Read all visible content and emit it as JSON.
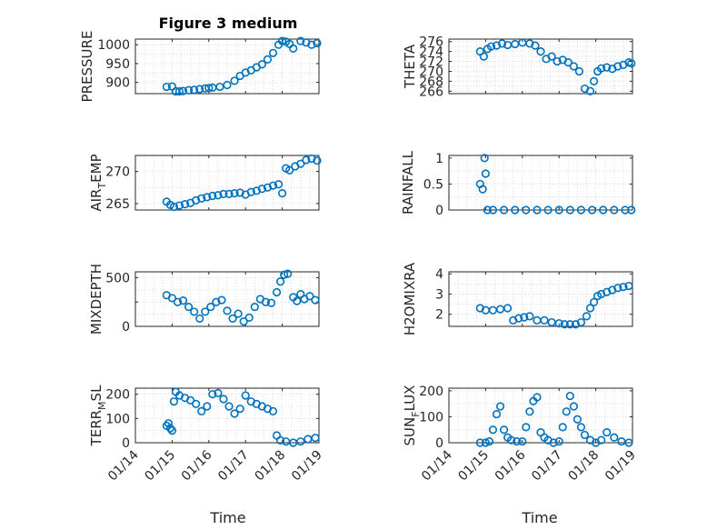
{
  "figure_title": "Figure 3 medium",
  "chart_data": [
    {
      "id": "pressure",
      "type": "scatter",
      "ylabel": "PRESSURE",
      "ylabel_sub": "",
      "xlim": [
        0,
        5
      ],
      "ylim": [
        870,
        1015
      ],
      "yticks": [
        900,
        950,
        1000
      ],
      "ytick_labels": [
        "900",
        "950",
        "1000"
      ],
      "grid": "on",
      "x": [
        0.85,
        1.0,
        1.1,
        1.2,
        1.3,
        1.45,
        1.6,
        1.75,
        1.9,
        2.0,
        2.1,
        2.3,
        2.5,
        2.7,
        2.85,
        3.0,
        3.15,
        3.3,
        3.45,
        3.6,
        3.75,
        3.9,
        4.0,
        4.1,
        4.2,
        4.3,
        4.5,
        4.65,
        4.8,
        4.95
      ],
      "values": [
        888,
        889,
        876,
        876,
        877,
        879,
        880,
        882,
        884,
        885,
        886,
        888,
        893,
        904,
        917,
        926,
        932,
        940,
        948,
        961,
        978,
        1000,
        1010,
        1008,
        1002,
        990,
        1010,
        1006,
        1000,
        1004
      ]
    },
    {
      "id": "theta",
      "type": "scatter",
      "ylabel": "THETA",
      "ylabel_sub": "",
      "xlim": [
        0,
        5
      ],
      "ylim": [
        265.5,
        276.5
      ],
      "yticks": [
        266,
        268,
        270,
        272,
        274,
        276
      ],
      "ytick_labels": [
        "266",
        "268",
        "270",
        "272",
        "274",
        "276"
      ],
      "grid": "on",
      "x": [
        0.85,
        0.95,
        1.05,
        1.15,
        1.3,
        1.45,
        1.6,
        1.8,
        2.0,
        2.2,
        2.35,
        2.5,
        2.65,
        2.8,
        2.95,
        3.1,
        3.25,
        3.4,
        3.55,
        3.7,
        3.85,
        3.95,
        4.05,
        4.15,
        4.3,
        4.45,
        4.6,
        4.75,
        4.9,
        4.97
      ],
      "values": [
        274,
        273,
        274.5,
        275,
        275.2,
        275.6,
        275.3,
        275.5,
        275.8,
        275.6,
        275.2,
        274,
        272.5,
        273,
        272,
        272.3,
        271.8,
        271,
        270,
        266.5,
        266,
        268,
        270,
        270.6,
        270.8,
        270.5,
        271,
        271.3,
        271.8,
        271.6
      ]
    },
    {
      "id": "airtemp",
      "type": "scatter",
      "ylabel": "AIR",
      "ylabel_sub": "T",
      "ylabel_suffix": "EMP",
      "xlim": [
        0,
        5
      ],
      "ylim": [
        264,
        272.5
      ],
      "yticks": [
        265,
        270
      ],
      "ytick_labels": [
        "265",
        "270"
      ],
      "grid": "on",
      "x": [
        0.85,
        0.95,
        1.05,
        1.2,
        1.35,
        1.5,
        1.65,
        1.8,
        1.95,
        2.1,
        2.25,
        2.4,
        2.55,
        2.7,
        2.85,
        3.0,
        3.15,
        3.3,
        3.45,
        3.6,
        3.75,
        3.9,
        4.0,
        4.1,
        4.2,
        4.35,
        4.5,
        4.65,
        4.8,
        4.95
      ],
      "values": [
        265.3,
        264.8,
        264.5,
        264.7,
        264.9,
        265.1,
        265.5,
        265.8,
        266.0,
        266.2,
        266.3,
        266.5,
        266.5,
        266.6,
        266.7,
        266.4,
        266.8,
        267.0,
        267.3,
        267.5,
        267.8,
        268.0,
        266.6,
        270.5,
        270.2,
        270.8,
        271.2,
        271.8,
        272.0,
        271.7
      ]
    },
    {
      "id": "rainfall",
      "type": "scatter",
      "ylabel": "RAINFALL",
      "ylabel_sub": "",
      "xlim": [
        0,
        5
      ],
      "ylim": [
        0,
        1.05
      ],
      "yticks": [
        0,
        0.5,
        1
      ],
      "ytick_labels": [
        "0",
        "0.5",
        "1"
      ],
      "grid": "on",
      "x": [
        0.85,
        0.92,
        0.97,
        1.0,
        1.05,
        1.2,
        1.5,
        1.8,
        2.1,
        2.4,
        2.7,
        3.0,
        3.3,
        3.6,
        3.9,
        4.2,
        4.5,
        4.8,
        4.97
      ],
      "values": [
        0.5,
        0.4,
        1.0,
        0.7,
        0,
        0,
        0,
        0,
        0,
        0,
        0,
        0,
        0,
        0,
        0,
        0,
        0,
        0,
        0
      ]
    },
    {
      "id": "mixdepth",
      "type": "scatter",
      "ylabel": "MIXDEPTH",
      "ylabel_sub": "",
      "xlim": [
        0,
        5
      ],
      "ylim": [
        0,
        560
      ],
      "yticks": [
        0,
        250,
        500
      ],
      "ytick_labels": [
        "0",
        "",
        "500"
      ],
      "grid": "on",
      "x": [
        0.85,
        1.0,
        1.15,
        1.3,
        1.45,
        1.6,
        1.75,
        1.9,
        2.05,
        2.2,
        2.35,
        2.5,
        2.65,
        2.8,
        2.95,
        3.1,
        3.25,
        3.4,
        3.55,
        3.7,
        3.85,
        3.95,
        4.05,
        4.15,
        4.3,
        4.4,
        4.5,
        4.6,
        4.75,
        4.9
      ],
      "values": [
        320,
        290,
        250,
        265,
        200,
        150,
        80,
        150,
        200,
        250,
        270,
        160,
        80,
        130,
        50,
        90,
        200,
        280,
        250,
        240,
        350,
        460,
        530,
        540,
        300,
        260,
        330,
        280,
        310,
        270
      ]
    },
    {
      "id": "h2omixra",
      "type": "scatter",
      "ylabel": "H2OMIXRA",
      "ylabel_sub": "",
      "xlim": [
        0,
        5
      ],
      "ylim": [
        1.4,
        4.1
      ],
      "yticks": [
        2,
        3,
        4
      ],
      "ytick_labels": [
        "2",
        "3",
        "4"
      ],
      "grid": "on",
      "x": [
        0.85,
        1.0,
        1.2,
        1.4,
        1.6,
        1.75,
        1.9,
        2.05,
        2.2,
        2.4,
        2.6,
        2.8,
        3.0,
        3.15,
        3.3,
        3.45,
        3.6,
        3.75,
        3.85,
        3.95,
        4.05,
        4.15,
        4.3,
        4.45,
        4.6,
        4.75,
        4.9
      ],
      "values": [
        2.3,
        2.2,
        2.2,
        2.25,
        2.3,
        1.7,
        1.8,
        1.85,
        1.9,
        1.7,
        1.7,
        1.6,
        1.55,
        1.5,
        1.5,
        1.5,
        1.6,
        1.9,
        2.3,
        2.6,
        2.9,
        3.0,
        3.1,
        3.2,
        3.3,
        3.35,
        3.4
      ]
    },
    {
      "id": "terrmsl",
      "type": "scatter",
      "ylabel": "TERR",
      "ylabel_sub": "M",
      "ylabel_suffix": "SL",
      "xlim": [
        0,
        5
      ],
      "ylim": [
        0,
        225
      ],
      "yticks": [
        0,
        100,
        200
      ],
      "ytick_labels": [
        "0",
        "100",
        "200"
      ],
      "grid": "on",
      "x": [
        0.85,
        0.9,
        0.95,
        1.0,
        1.05,
        1.1,
        1.2,
        1.35,
        1.5,
        1.65,
        1.8,
        1.95,
        2.1,
        2.25,
        2.4,
        2.55,
        2.7,
        2.85,
        3.0,
        3.15,
        3.3,
        3.45,
        3.6,
        3.75,
        3.85,
        3.95,
        4.1,
        4.3,
        4.5,
        4.7,
        4.9
      ],
      "values": [
        70,
        80,
        60,
        50,
        170,
        210,
        195,
        185,
        175,
        160,
        130,
        150,
        200,
        205,
        180,
        150,
        120,
        140,
        195,
        170,
        160,
        150,
        140,
        130,
        30,
        10,
        5,
        0,
        5,
        15,
        20
      ]
    },
    {
      "id": "sunflux",
      "type": "scatter",
      "ylabel": "SUN",
      "ylabel_sub": "F",
      "ylabel_suffix": "LUX",
      "xlim": [
        0,
        5
      ],
      "ylim": [
        0,
        210
      ],
      "yticks": [
        0,
        100,
        200
      ],
      "ytick_labels": [
        "0",
        "100",
        "200"
      ],
      "grid": "on",
      "x": [
        0.85,
        1.0,
        1.1,
        1.2,
        1.3,
        1.4,
        1.5,
        1.6,
        1.7,
        1.85,
        2.0,
        2.1,
        2.2,
        2.3,
        2.4,
        2.5,
        2.6,
        2.7,
        2.85,
        3.0,
        3.1,
        3.2,
        3.3,
        3.4,
        3.5,
        3.6,
        3.7,
        3.85,
        4.0,
        4.15,
        4.3,
        4.5,
        4.7,
        4.9
      ],
      "values": [
        0,
        0,
        5,
        50,
        110,
        140,
        50,
        20,
        10,
        5,
        5,
        60,
        120,
        160,
        175,
        40,
        20,
        10,
        0,
        5,
        60,
        120,
        180,
        140,
        90,
        60,
        30,
        10,
        0,
        10,
        40,
        20,
        5,
        0
      ]
    }
  ],
  "x_ticks": {
    "positions": [
      0,
      1,
      2,
      3,
      4,
      5
    ],
    "labels": [
      "01/14",
      "01/15",
      "01/16",
      "01/17",
      "01/18",
      "01/19"
    ]
  },
  "xlabel_left": "Time",
  "xlabel_right": "Time",
  "colors": {
    "marker": "#0072BD",
    "grid": "#dcdcdc",
    "axis": "#262626"
  }
}
